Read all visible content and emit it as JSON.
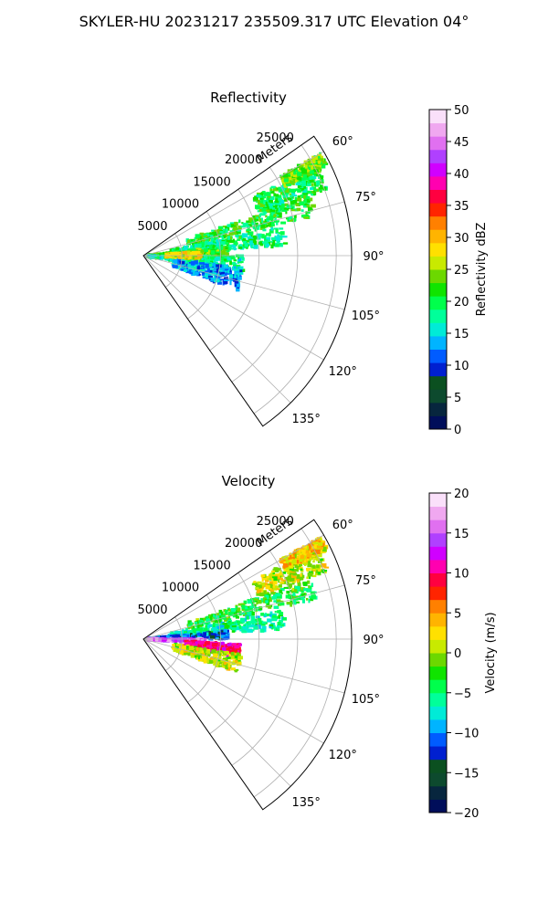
{
  "title": "SKYLER-HU  20231217  235509.317 UTC Elevation 04°",
  "colors": {
    "reflectivity_colormap": [
      "#000e5a",
      "#07263e",
      "#0d4a2e",
      "#0b5020",
      "#0020d0",
      "#005cff",
      "#00b4ff",
      "#00ebd7",
      "#00ff9a",
      "#00ff4c",
      "#10e400",
      "#6cd800",
      "#c8ea00",
      "#ffe000",
      "#ffb400",
      "#ff8000",
      "#ff2400",
      "#ff0040",
      "#ff00b0",
      "#d000ff",
      "#b040ff",
      "#e070f0",
      "#f0a8f0",
      "#fae0fa"
    ],
    "velocity_colormap": [
      "#000e5a",
      "#07263e",
      "#0d4a2e",
      "#0b5020",
      "#0020d0",
      "#005cff",
      "#00b4ff",
      "#00ebd7",
      "#00ff9a",
      "#00ff4c",
      "#10e400",
      "#6cd800",
      "#c8ea00",
      "#ffe000",
      "#ffb400",
      "#ff8000",
      "#ff2400",
      "#ff0040",
      "#ff00b0",
      "#d000ff",
      "#b040ff",
      "#e070f0",
      "#f0a8f0",
      "#fae0fa"
    ]
  },
  "chart_data": [
    {
      "type": "heatmap",
      "title": "Reflectivity",
      "projection": "polar-sector",
      "radial_label": "Meters",
      "radial_ticks": [
        5000,
        10000,
        15000,
        20000,
        25000
      ],
      "radial_tick_labels": [
        "5000",
        "10000",
        "15000",
        "20000",
        "25000"
      ],
      "r_max": 27000,
      "theta_range_deg": [
        55,
        145
      ],
      "theta_ticks": [
        60,
        75,
        90,
        105,
        120,
        135
      ],
      "theta_tick_labels": [
        "60°",
        "75°",
        "90°",
        "105°",
        "120°",
        "135°"
      ],
      "grid": true,
      "colorbar": {
        "label": "Reflectivity dBZ",
        "range": [
          0,
          50
        ],
        "ticks": [
          0,
          5,
          10,
          15,
          20,
          25,
          30,
          35,
          40,
          45,
          50
        ],
        "tick_labels": [
          "0",
          "5",
          "10",
          "15",
          "20",
          "25",
          "30",
          "35",
          "40",
          "45",
          "50"
        ]
      },
      "echo_regions": [
        {
          "theta": [
            62,
            70
          ],
          "r": [
            16000,
            25500
          ],
          "value": 20
        },
        {
          "theta": [
            60,
            64
          ],
          "r": [
            20500,
            26500
          ],
          "value": 23
        },
        {
          "theta": [
            70,
            77
          ],
          "r": [
            6000,
            23000
          ],
          "value": 21
        },
        {
          "theta": [
            78,
            86
          ],
          "r": [
            3500,
            18500
          ],
          "value": 19
        },
        {
          "theta": [
            84,
            90
          ],
          "r": [
            500,
            11000
          ],
          "value": 22
        },
        {
          "theta": [
            90,
            100
          ],
          "r": [
            500,
            13000
          ],
          "value": 18
        },
        {
          "theta": [
            97,
            110
          ],
          "r": [
            4000,
            13000
          ],
          "value": 13
        },
        {
          "theta": [
            86,
            93
          ],
          "r": [
            3000,
            7500
          ],
          "value": 27
        }
      ]
    },
    {
      "type": "heatmap",
      "title": "Velocity",
      "projection": "polar-sector",
      "radial_label": "Meters",
      "radial_ticks": [
        5000,
        10000,
        15000,
        20000,
        25000
      ],
      "radial_tick_labels": [
        "5000",
        "10000",
        "15000",
        "20000",
        "25000"
      ],
      "r_max": 27000,
      "theta_range_deg": [
        55,
        145
      ],
      "theta_ticks": [
        60,
        75,
        90,
        105,
        120,
        135
      ],
      "theta_tick_labels": [
        "60°",
        "75°",
        "90°",
        "105°",
        "120°",
        "135°"
      ],
      "grid": true,
      "colorbar": {
        "label": "Velocity (m/s)",
        "range": [
          -20,
          20
        ],
        "ticks": [
          -20,
          -15,
          -10,
          -5,
          0,
          5,
          10,
          15,
          20
        ],
        "tick_labels": [
          "−20",
          "−15",
          "−10",
          "−5",
          "0",
          "5",
          "10",
          "15",
          "20"
        ]
      },
      "echo_regions": [
        {
          "theta": [
            62,
            70
          ],
          "r": [
            16000,
            25500
          ],
          "value": 1
        },
        {
          "theta": [
            60,
            64
          ],
          "r": [
            20500,
            26500
          ],
          "value": 3
        },
        {
          "theta": [
            70,
            77
          ],
          "r": [
            6000,
            23000
          ],
          "value": -3
        },
        {
          "theta": [
            78,
            86
          ],
          "r": [
            3500,
            18500
          ],
          "value": -6
        },
        {
          "theta": [
            84,
            90
          ],
          "r": [
            500,
            11000
          ],
          "value": -11
        },
        {
          "theta": [
            90,
            94
          ],
          "r": [
            500,
            8000
          ],
          "value": 15
        },
        {
          "theta": [
            93,
            101
          ],
          "r": [
            5500,
            12500
          ],
          "value": 10
        },
        {
          "theta": [
            99,
            110
          ],
          "r": [
            4000,
            13000
          ],
          "value": 1
        }
      ]
    }
  ]
}
